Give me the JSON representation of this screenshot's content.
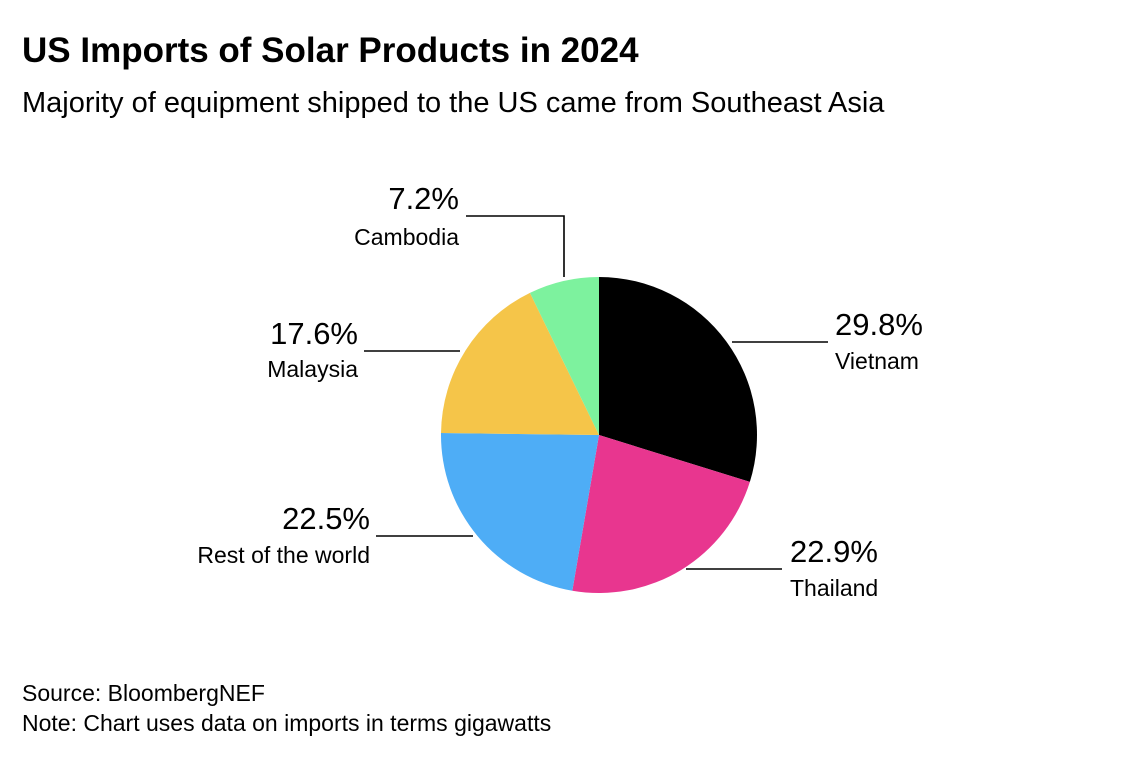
{
  "title": "US Imports of Solar Products in 2024",
  "subtitle": "Majority of equipment shipped to the US came from Southeast Asia",
  "source": "Source: BloombergNEF",
  "note": "Note: Chart uses data on imports in terms gigawatts",
  "chart_data": {
    "type": "pie",
    "title": "US Imports of Solar Products in 2024",
    "subtitle": "Majority of equipment shipped to the US came from Southeast Asia",
    "unit": "%",
    "slices": [
      {
        "label": "Vietnam",
        "value": 29.8,
        "value_label": "29.8%",
        "color": "#000000"
      },
      {
        "label": "Thailand",
        "value": 22.9,
        "value_label": "22.9%",
        "color": "#E8368F"
      },
      {
        "label": "Rest of the world",
        "value": 22.5,
        "value_label": "22.5%",
        "color": "#4EADF6"
      },
      {
        "label": "Malaysia",
        "value": 17.6,
        "value_label": "17.6%",
        "color": "#F5C549"
      },
      {
        "label": "Cambodia",
        "value": 7.2,
        "value_label": "7.2%",
        "color": "#7DF29E"
      }
    ],
    "start_angle": "12 o'clock",
    "direction": "clockwise",
    "legend": "none (direct labels with leader lines)"
  }
}
